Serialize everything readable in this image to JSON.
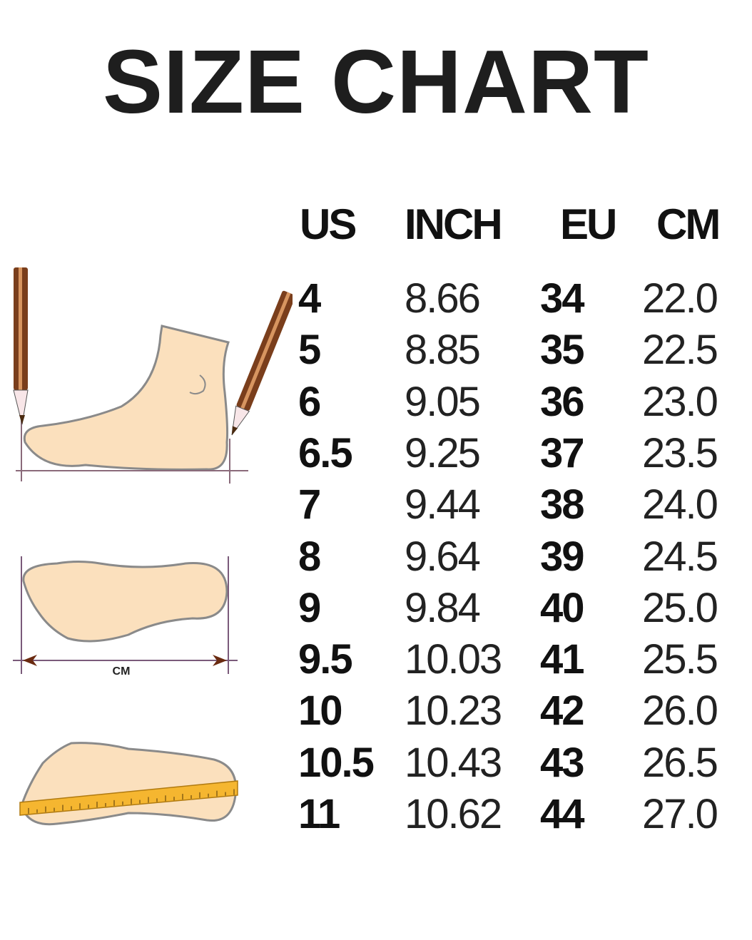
{
  "chart_data": {
    "type": "table",
    "title": "SIZE CHART",
    "columns": [
      "US",
      "INCH",
      "EU",
      "CM"
    ],
    "rows": [
      [
        "4",
        "8.66",
        "34",
        "22.0"
      ],
      [
        "5",
        "8.85",
        "35",
        "22.5"
      ],
      [
        "6",
        "9.05",
        "36",
        "23.0"
      ],
      [
        "6.5",
        "9.25",
        "37",
        "23.5"
      ],
      [
        "7",
        "9.44",
        "38",
        "24.0"
      ],
      [
        "8",
        "9.64",
        "39",
        "24.5"
      ],
      [
        "9",
        "9.84",
        "40",
        "25.0"
      ],
      [
        "9.5",
        "10.03",
        "41",
        "25.5"
      ],
      [
        "10",
        "10.23",
        "42",
        "26.0"
      ],
      [
        "10.5",
        "10.43",
        "43",
        "26.5"
      ],
      [
        "11",
        "10.62",
        "44",
        "27.0"
      ]
    ]
  },
  "illustration": {
    "measure_label": "CM",
    "colors": {
      "skin": "#fbe0bd",
      "outline": "#8a8a8a",
      "pencil": "#7a3e1c",
      "ruler": "#f5b630",
      "guide": "#7a5a7a"
    }
  }
}
